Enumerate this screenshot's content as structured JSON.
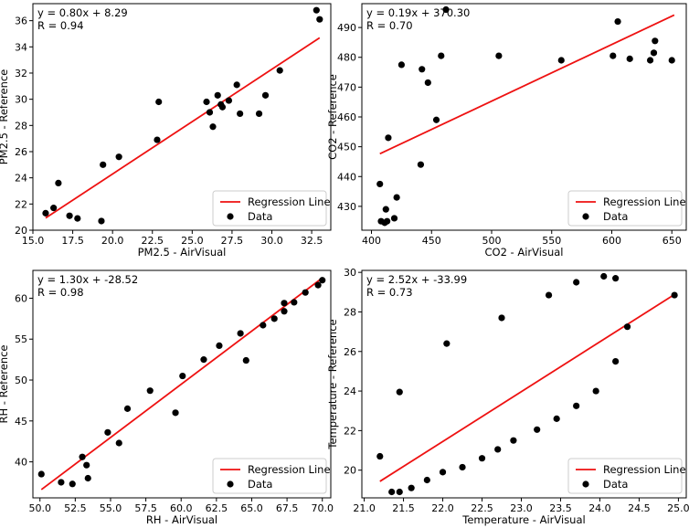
{
  "chart_data": [
    {
      "type": "scatter",
      "xlabel": "PM2.5 - AirVisual",
      "ylabel": "PM2.5 - Reference",
      "xlim": [
        15,
        33.7
      ],
      "ylim": [
        20,
        37.3
      ],
      "xticks": [
        15.0,
        17.5,
        20.0,
        22.5,
        25.0,
        27.5,
        30.0,
        32.5
      ],
      "xtick_labels": [
        "15.0",
        "17.5",
        "20.0",
        "22.5",
        "25.0",
        "27.5",
        "30.0",
        "32.5"
      ],
      "yticks": [
        20,
        22,
        24,
        26,
        28,
        30,
        32,
        34,
        36
      ],
      "ytick_labels": [
        "20",
        "22",
        "24",
        "26",
        "28",
        "30",
        "32",
        "34",
        "36"
      ],
      "equation": "y = 0.80x + 8.29",
      "r_text": "R = 0.94",
      "regression": {
        "slope": 0.8,
        "intercept": 8.29,
        "x_range": [
          15.8,
          33.0
        ]
      },
      "legend": {
        "position": "lower-right",
        "line_label": "Regression Line",
        "data_label": "Data"
      },
      "points": [
        [
          15.8,
          21.3
        ],
        [
          16.3,
          21.7
        ],
        [
          16.6,
          23.6
        ],
        [
          17.3,
          21.1
        ],
        [
          17.8,
          20.9
        ],
        [
          19.3,
          20.7
        ],
        [
          19.4,
          25.0
        ],
        [
          20.4,
          25.6
        ],
        [
          22.8,
          26.9
        ],
        [
          22.9,
          29.8
        ],
        [
          25.9,
          29.8
        ],
        [
          26.1,
          29.0
        ],
        [
          26.3,
          27.9
        ],
        [
          26.6,
          30.3
        ],
        [
          26.8,
          29.6
        ],
        [
          26.9,
          29.4
        ],
        [
          27.3,
          29.9
        ],
        [
          27.8,
          31.1
        ],
        [
          28.0,
          28.9
        ],
        [
          29.2,
          28.9
        ],
        [
          29.6,
          30.3
        ],
        [
          30.5,
          32.2
        ],
        [
          32.8,
          36.8
        ],
        [
          33.0,
          36.1
        ]
      ]
    },
    {
      "type": "scatter",
      "xlabel": "CO2 - AirVisual",
      "ylabel": "CO2 - Reference",
      "xlim": [
        392,
        662
      ],
      "ylim": [
        422,
        498
      ],
      "xticks": [
        400,
        450,
        500,
        550,
        600,
        650
      ],
      "xtick_labels": [
        "400",
        "450",
        "500",
        "550",
        "600",
        "650"
      ],
      "yticks": [
        430,
        440,
        450,
        460,
        470,
        480,
        490
      ],
      "ytick_labels": [
        "430",
        "440",
        "450",
        "460",
        "470",
        "480",
        "490"
      ],
      "equation": "y = 0.19x + 370.30",
      "r_text": "R = 0.70",
      "regression": {
        "slope": 0.19,
        "intercept": 370.3,
        "x_range": [
          407,
          652
        ]
      },
      "legend": {
        "position": "lower-right",
        "line_label": "Regression Line",
        "data_label": "Data"
      },
      "points": [
        [
          407,
          437.5
        ],
        [
          408,
          425
        ],
        [
          411,
          424.5
        ],
        [
          412,
          429
        ],
        [
          413,
          425
        ],
        [
          414,
          453
        ],
        [
          419,
          426
        ],
        [
          421,
          433
        ],
        [
          425,
          477.5
        ],
        [
          441,
          444
        ],
        [
          442,
          476
        ],
        [
          447,
          471.5
        ],
        [
          454,
          459
        ],
        [
          458,
          480.5
        ],
        [
          462,
          496
        ],
        [
          506,
          480.5
        ],
        [
          558,
          479
        ],
        [
          601,
          480.5
        ],
        [
          605,
          492
        ],
        [
          615,
          479.5
        ],
        [
          632,
          479
        ],
        [
          635,
          481.5
        ],
        [
          636,
          485.5
        ],
        [
          650,
          479
        ]
      ]
    },
    {
      "type": "scatter",
      "xlabel": "RH - AirVisual",
      "ylabel": "RH - Reference",
      "xlim": [
        49.5,
        70.6
      ],
      "ylim": [
        35.6,
        63.4
      ],
      "xticks": [
        50.0,
        52.5,
        55.0,
        57.5,
        60.0,
        62.5,
        65.0,
        67.5,
        70.0
      ],
      "xtick_labels": [
        "50.0",
        "52.5",
        "55.0",
        "57.5",
        "60.0",
        "62.5",
        "65.0",
        "67.5",
        "70.0"
      ],
      "yticks": [
        40,
        45,
        50,
        55,
        60
      ],
      "ytick_labels": [
        "40",
        "45",
        "50",
        "55",
        "60"
      ],
      "equation": "y = 1.30x + -28.52",
      "r_text": "R = 0.98",
      "regression": {
        "slope": 1.3,
        "intercept": -28.52,
        "x_range": [
          50.1,
          70.0
        ]
      },
      "legend": {
        "position": "lower-right",
        "line_label": "Regression Line",
        "data_label": "Data"
      },
      "points": [
        [
          50.1,
          38.5
        ],
        [
          51.5,
          37.5
        ],
        [
          52.3,
          37.3
        ],
        [
          53.0,
          40.6
        ],
        [
          53.3,
          39.6
        ],
        [
          53.4,
          38.0
        ],
        [
          54.8,
          43.6
        ],
        [
          55.6,
          42.3
        ],
        [
          56.2,
          46.5
        ],
        [
          57.8,
          48.7
        ],
        [
          59.6,
          46.0
        ],
        [
          60.1,
          50.5
        ],
        [
          61.6,
          52.5
        ],
        [
          62.7,
          54.2
        ],
        [
          64.2,
          55.7
        ],
        [
          64.6,
          52.4
        ],
        [
          65.8,
          56.7
        ],
        [
          66.6,
          57.5
        ],
        [
          67.3,
          58.4
        ],
        [
          67.3,
          59.4
        ],
        [
          68.0,
          59.5
        ],
        [
          68.8,
          60.7
        ],
        [
          69.7,
          61.6
        ],
        [
          70.0,
          62.2
        ]
      ]
    },
    {
      "type": "scatter",
      "xlabel": "Temperature - AirVisual",
      "ylabel": "Temperature - Reference",
      "xlim": [
        20.97,
        25.1
      ],
      "ylim": [
        18.6,
        30.1
      ],
      "xticks": [
        21.0,
        21.5,
        22.0,
        22.5,
        23.0,
        23.5,
        24.0,
        24.5,
        25.0
      ],
      "xtick_labels": [
        "21.0",
        "21.5",
        "22.0",
        "22.5",
        "23.0",
        "23.5",
        "24.0",
        "24.5",
        "25.0"
      ],
      "yticks": [
        20,
        22,
        24,
        26,
        28,
        30
      ],
      "ytick_labels": [
        "20",
        "22",
        "24",
        "26",
        "28",
        "30"
      ],
      "equation": "y = 2.52x + -33.99",
      "r_text": "R = 0.73",
      "regression": {
        "slope": 2.52,
        "intercept": -33.99,
        "x_range": [
          21.2,
          24.95
        ]
      },
      "legend": {
        "position": "lower-right",
        "line_label": "Regression Line",
        "data_label": "Data"
      },
      "points": [
        [
          21.2,
          20.7
        ],
        [
          21.35,
          18.9
        ],
        [
          21.45,
          23.95
        ],
        [
          21.45,
          18.9
        ],
        [
          21.6,
          19.1
        ],
        [
          21.8,
          19.5
        ],
        [
          22.0,
          19.9
        ],
        [
          22.05,
          26.4
        ],
        [
          22.25,
          20.15
        ],
        [
          22.5,
          20.6
        ],
        [
          22.7,
          21.05
        ],
        [
          22.75,
          27.7
        ],
        [
          22.9,
          21.5
        ],
        [
          23.2,
          22.05
        ],
        [
          23.35,
          28.85
        ],
        [
          23.45,
          22.6
        ],
        [
          23.7,
          29.5
        ],
        [
          23.7,
          23.25
        ],
        [
          23.95,
          24.0
        ],
        [
          24.05,
          29.8
        ],
        [
          24.2,
          29.7
        ],
        [
          24.2,
          25.5
        ],
        [
          24.35,
          27.25
        ],
        [
          24.95,
          28.85
        ]
      ]
    }
  ]
}
